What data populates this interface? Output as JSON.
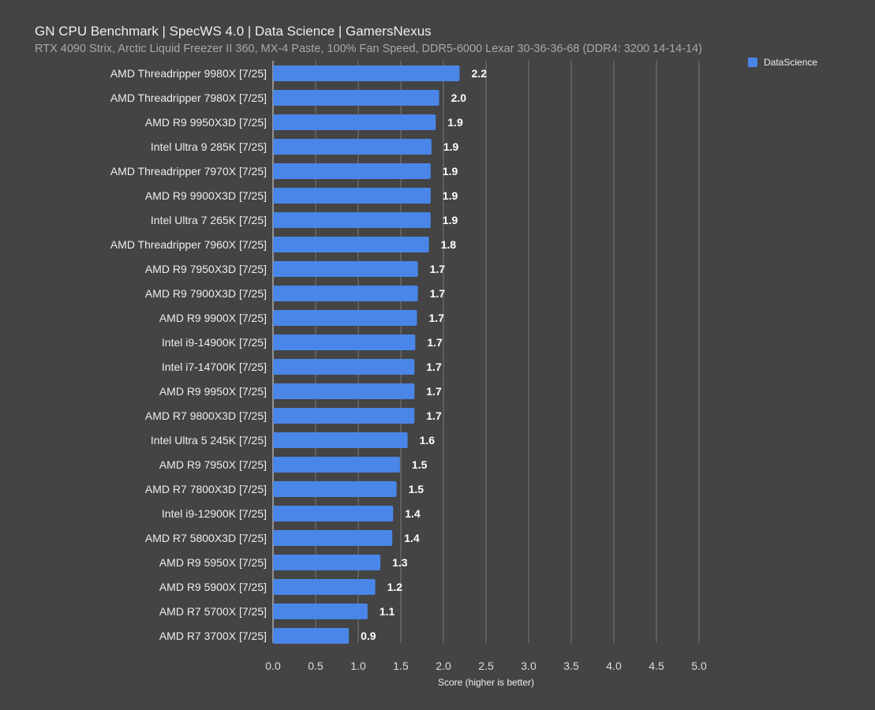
{
  "chart_data": {
    "type": "bar",
    "orientation": "horizontal",
    "title": "GN CPU Benchmark | SpecWS 4.0 | Data Science | GamersNexus",
    "subtitle": "RTX 4090 Strix, Arctic Liquid Freezer II 360, MX-4 Paste, 100% Fan Speed, DDR5-6000 Lexar 30-36-36-68 (DDR4: 3200 14-14-14)",
    "xlabel": "Score (higher is better)",
    "ylabel": "",
    "xlim": [
      0,
      5
    ],
    "xticks": [
      "0.0",
      "0.5",
      "1.0",
      "1.5",
      "2.0",
      "2.5",
      "3.0",
      "3.5",
      "4.0",
      "4.5",
      "5.0"
    ],
    "grid": true,
    "legend_position": "top-right",
    "series_color": "#4a86e8",
    "categories": [
      "AMD Threadripper 9980X [7/25]",
      "AMD Threadripper 7980X [7/25]",
      "AMD R9 9950X3D [7/25]",
      "Intel Ultra 9 285K [7/25]",
      "AMD Threadripper 7970X [7/25]",
      "AMD R9 9900X3D [7/25]",
      "Intel Ultra 7 265K [7/25]",
      "AMD Threadripper 7960X [7/25]",
      "AMD R9 7950X3D [7/25]",
      "AMD R9 7900X3D [7/25]",
      "AMD R9 9900X [7/25]",
      "Intel i9-14900K [7/25]",
      "Intel i7-14700K [7/25]",
      "AMD R9 9950X [7/25]",
      "AMD R7 9800X3D [7/25]",
      "Intel Ultra 5 245K [7/25]",
      "AMD R9 7950X [7/25]",
      "AMD R7 7800X3D [7/25]",
      "Intel i9-12900K [7/25]",
      "AMD R7 5800X3D [7/25]",
      "AMD R9 5950X [7/25]",
      "AMD R9 5900X [7/25]",
      "AMD R7 5700X [7/25]",
      "AMD R7 3700X [7/25]"
    ],
    "series": [
      {
        "name": "DataScience",
        "values": [
          2.19,
          1.95,
          1.91,
          1.86,
          1.85,
          1.85,
          1.85,
          1.83,
          1.7,
          1.7,
          1.69,
          1.67,
          1.66,
          1.66,
          1.66,
          1.58,
          1.49,
          1.45,
          1.41,
          1.4,
          1.26,
          1.2,
          1.11,
          0.89
        ],
        "labels": [
          "2.2",
          "2.0",
          "1.9",
          "1.9",
          "1.9",
          "1.9",
          "1.9",
          "1.8",
          "1.7",
          "1.7",
          "1.7",
          "1.7",
          "1.7",
          "1.7",
          "1.7",
          "1.6",
          "1.5",
          "1.5",
          "1.4",
          "1.4",
          "1.3",
          "1.2",
          "1.1",
          "0.9"
        ]
      }
    ]
  }
}
